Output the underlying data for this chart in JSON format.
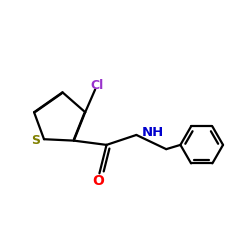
{
  "bg_color": "#FFFFFF",
  "bond_color": "#000000",
  "S_color": "#808000",
  "Cl_color": "#9932CC",
  "O_color": "#FF0000",
  "N_color": "#0000CD",
  "line_width": 1.6,
  "fig_size": [
    2.5,
    2.5
  ],
  "dpi": 100,
  "xlim": [
    0.0,
    1.0
  ],
  "ylim": [
    0.15,
    0.85
  ]
}
